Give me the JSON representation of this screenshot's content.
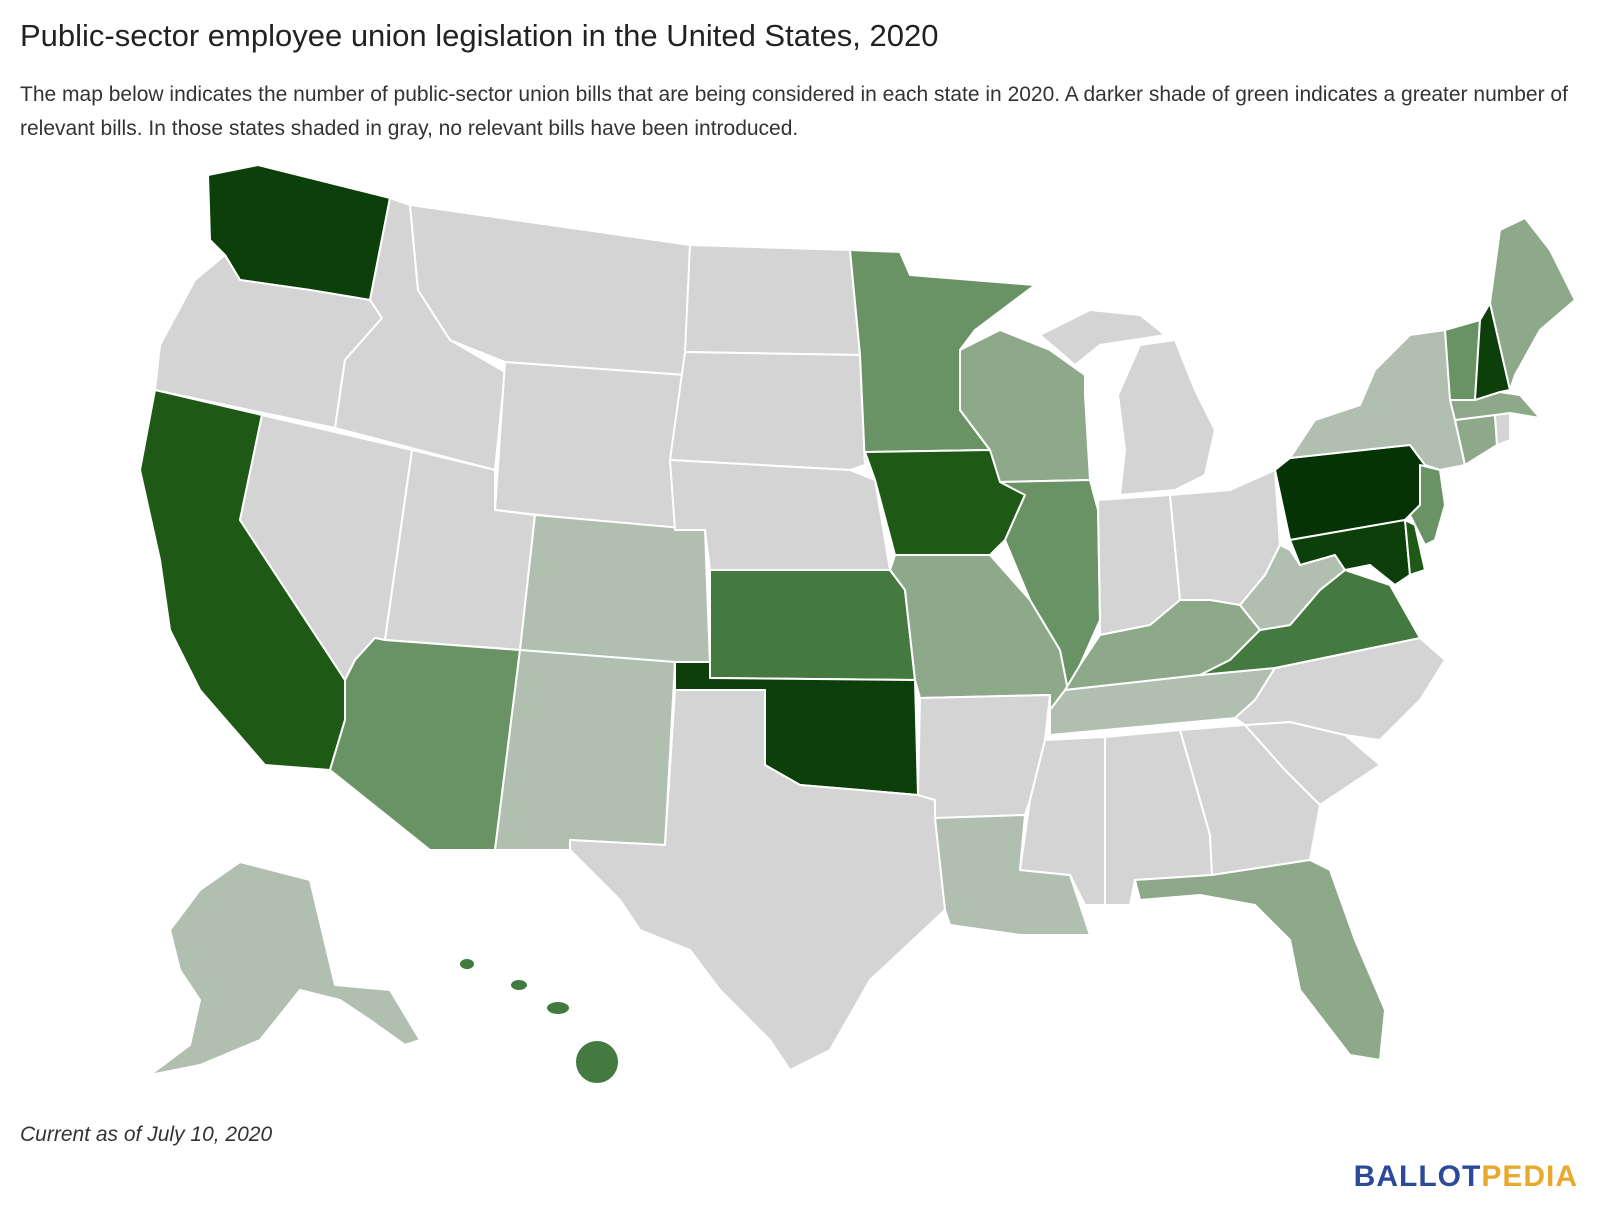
{
  "title": "Public-sector employee union legislation in the United States, 2020",
  "subtitle": "The map below indicates the number of public-sector union bills that are being considered in each state in 2020. A darker shade of green indicates a greater number of relevant bills. In those states shaded in gray, no relevant bills have been introduced.",
  "footnote": "Current as of July 10, 2020",
  "brand": {
    "part1": "BALLOT",
    "part2": "PEDIA",
    "color1": "#2c4a9a",
    "color2": "#e9a92e"
  },
  "colors": {
    "none": "#d4d4d4",
    "level1": "#b1bfb0",
    "level2": "#8ea98a",
    "level3": "#6a9365",
    "level4": "#44793f",
    "level5": "#1e5a16",
    "level6": "#0c3f0a",
    "level7": "#063306"
  },
  "states": [
    {
      "code": "WA",
      "level": "level6"
    },
    {
      "code": "OR",
      "level": "none"
    },
    {
      "code": "CA",
      "level": "level5"
    },
    {
      "code": "NV",
      "level": "none"
    },
    {
      "code": "ID",
      "level": "none"
    },
    {
      "code": "MT",
      "level": "none"
    },
    {
      "code": "WY",
      "level": "none"
    },
    {
      "code": "UT",
      "level": "none"
    },
    {
      "code": "AZ",
      "level": "level3"
    },
    {
      "code": "CO",
      "level": "level1"
    },
    {
      "code": "NM",
      "level": "level1"
    },
    {
      "code": "ND",
      "level": "none"
    },
    {
      "code": "SD",
      "level": "none"
    },
    {
      "code": "NE",
      "level": "none"
    },
    {
      "code": "KS",
      "level": "level4"
    },
    {
      "code": "OK",
      "level": "level6"
    },
    {
      "code": "TX",
      "level": "none"
    },
    {
      "code": "MN",
      "level": "level3"
    },
    {
      "code": "IA",
      "level": "level5"
    },
    {
      "code": "MO",
      "level": "level2"
    },
    {
      "code": "AR",
      "level": "none"
    },
    {
      "code": "LA",
      "level": "level1"
    },
    {
      "code": "WI",
      "level": "level2"
    },
    {
      "code": "IL",
      "level": "level3"
    },
    {
      "code": "MI",
      "level": "none"
    },
    {
      "code": "IN",
      "level": "none"
    },
    {
      "code": "OH",
      "level": "none"
    },
    {
      "code": "KY",
      "level": "level2"
    },
    {
      "code": "TN",
      "level": "level1"
    },
    {
      "code": "MS",
      "level": "none"
    },
    {
      "code": "AL",
      "level": "none"
    },
    {
      "code": "GA",
      "level": "none"
    },
    {
      "code": "FL",
      "level": "level2"
    },
    {
      "code": "SC",
      "level": "none"
    },
    {
      "code": "NC",
      "level": "none"
    },
    {
      "code": "VA",
      "level": "level4"
    },
    {
      "code": "WV",
      "level": "level1"
    },
    {
      "code": "MD",
      "level": "level6"
    },
    {
      "code": "DE",
      "level": "level5"
    },
    {
      "code": "PA",
      "level": "level7"
    },
    {
      "code": "NJ",
      "level": "level3"
    },
    {
      "code": "NY",
      "level": "level1"
    },
    {
      "code": "CT",
      "level": "level2"
    },
    {
      "code": "RI",
      "level": "none"
    },
    {
      "code": "MA",
      "level": "level2"
    },
    {
      "code": "VT",
      "level": "level3"
    },
    {
      "code": "NH",
      "level": "level6"
    },
    {
      "code": "ME",
      "level": "level2"
    },
    {
      "code": "AK",
      "level": "level1"
    },
    {
      "code": "HI",
      "level": "level4"
    }
  ]
}
